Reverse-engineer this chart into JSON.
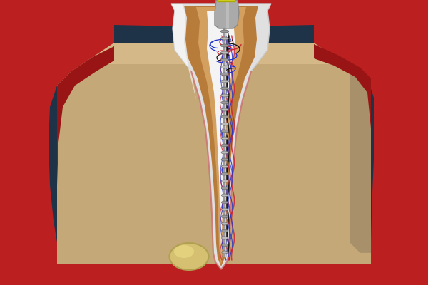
{
  "bg_color": "#1e3348",
  "bone_color": "#c4a878",
  "bone_dark_color": "#a8906a",
  "gum_color": "#bb1f1f",
  "gum_dark_color": "#991515",
  "dentin_color": "#b87c3a",
  "dentin_inner_color": "#c8924a",
  "pulp_color": "#d4a060",
  "enamel_color": "#e0e0e0",
  "enamel_inner_color": "#f0f0f0",
  "canal_white": "#f4f4f4",
  "nerve_red": "#cc2233",
  "nerve_blue": "#2233cc",
  "nerve_dark": "#111111",
  "drill_silver": "#9a9a9a",
  "drill_light": "#cccccc",
  "drill_dark": "#555555",
  "chuck_color": "#aaaaaa",
  "gold_color": "#cccc22",
  "abscess_color": "#d4c070",
  "abscess_hi": "#eedd88"
}
